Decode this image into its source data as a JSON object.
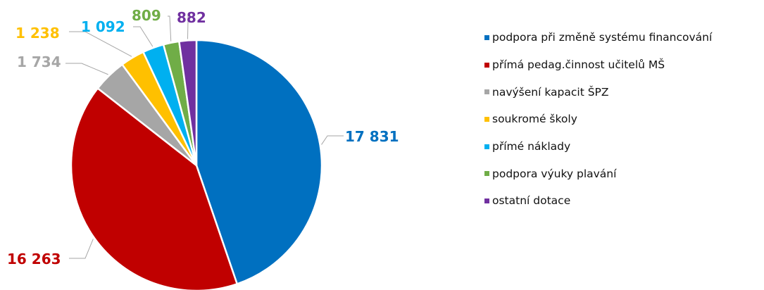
{
  "chart_data": {
    "type": "pie",
    "categories": [
      "podpora při změně systému financování",
      "přímá pedag.činnost učitelů MŠ",
      "navýšení kapacit ŠPZ",
      "soukromé školy",
      "přímé náklady",
      "podpora výuky plavání",
      "ostatní dotace"
    ],
    "values": [
      17831,
      16263,
      1734,
      1238,
      1092,
      809,
      882
    ],
    "value_labels": [
      "17 831",
      "16 263",
      "1 734",
      "1 238",
      "1 092",
      "809",
      "882"
    ],
    "colors": [
      "#0070C0",
      "#C00000",
      "#A6A6A6",
      "#FFC000",
      "#00B0F0",
      "#70AD47",
      "#7030A0"
    ],
    "start_angle_deg": 0,
    "direction": "clockwise",
    "legend_position": "right"
  }
}
